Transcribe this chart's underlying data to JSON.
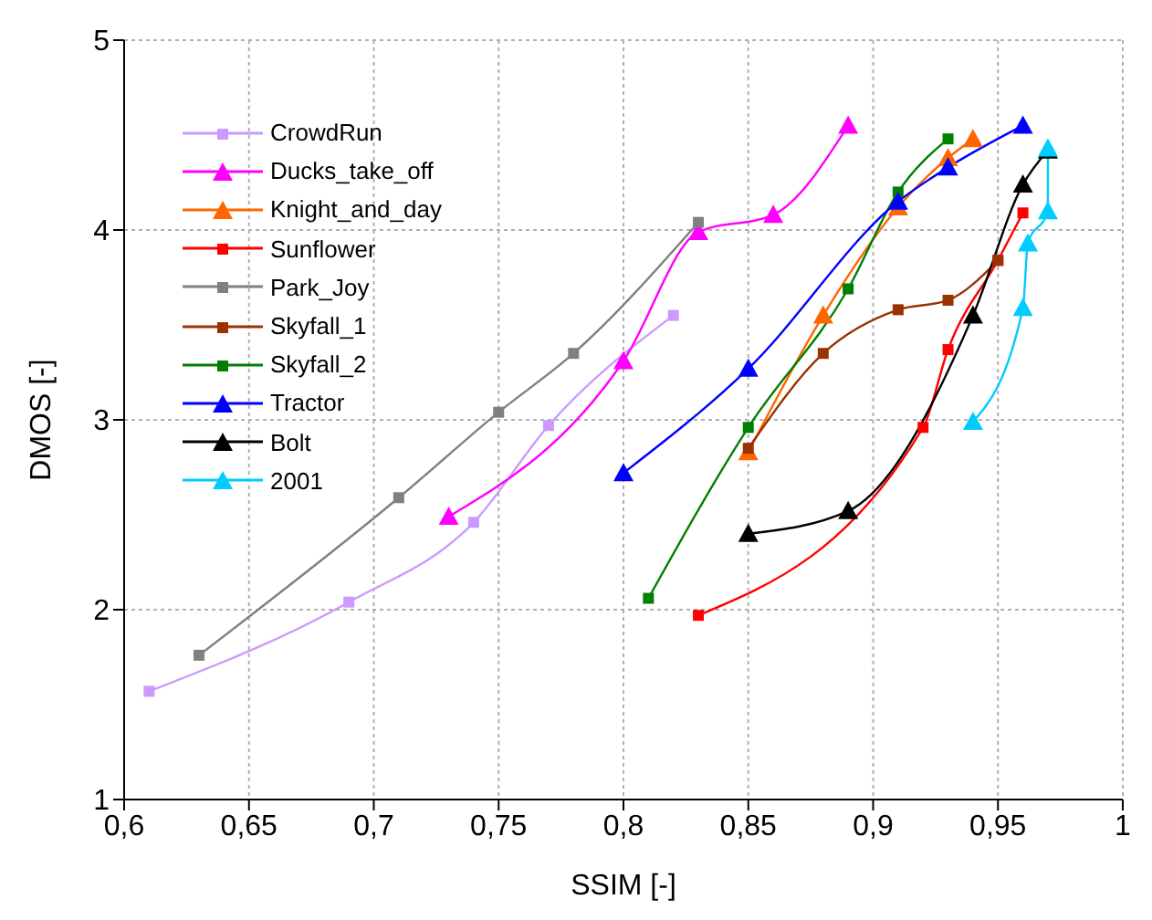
{
  "chart_data": {
    "type": "line",
    "xlabel": "SSIM [-]",
    "ylabel": "DMOS [-]",
    "xlim": [
      0.6,
      1
    ],
    "xticks": [
      {
        "value": 0.6,
        "label": "0,6"
      },
      {
        "value": 0.65,
        "label": "0,65"
      },
      {
        "value": 0.7,
        "label": "0,7"
      },
      {
        "value": 0.75,
        "label": "0,75"
      },
      {
        "value": 0.8,
        "label": "0,8"
      },
      {
        "value": 0.85,
        "label": "0,85"
      },
      {
        "value": 0.9,
        "label": "0,9"
      },
      {
        "value": 0.95,
        "label": "0,95"
      },
      1
    ],
    "ylim": [
      1,
      5
    ],
    "yticks": [
      1,
      2,
      3,
      4,
      5
    ],
    "grid": true,
    "legend": "top left",
    "line_style": "solid",
    "series": [
      {
        "name": "CrowdRun",
        "color": "#cc99ff",
        "marker": "square",
        "x": [
          0.61,
          0.69,
          0.74,
          0.77,
          0.82
        ],
        "values": [
          1.57,
          2.04,
          2.46,
          2.97,
          3.55
        ]
      },
      {
        "name": "Ducks_take_off",
        "color": "#ff00ff",
        "marker": "triangle",
        "x": [
          0.73,
          0.8,
          0.83,
          0.86,
          0.89
        ],
        "values": [
          2.49,
          3.31,
          3.99,
          4.08,
          4.55
        ]
      },
      {
        "name": "Knight_and_day",
        "color": "#ff6600",
        "marker": "triangle",
        "x": [
          0.85,
          0.88,
          0.91,
          0.93,
          0.94
        ],
        "values": [
          2.83,
          3.55,
          4.12,
          4.38,
          4.48
        ]
      },
      {
        "name": "Sunflower",
        "color": "#ff0000",
        "marker": "square",
        "x": [
          0.83,
          0.92,
          0.93,
          0.95,
          0.96
        ],
        "values": [
          1.97,
          2.96,
          3.37,
          3.84,
          4.09
        ]
      },
      {
        "name": "Park_Joy",
        "color": "#808080",
        "marker": "square",
        "x": [
          0.63,
          0.71,
          0.75,
          0.78,
          0.83
        ],
        "values": [
          1.76,
          2.59,
          3.04,
          3.35,
          4.04
        ]
      },
      {
        "name": "Skyfall_1",
        "color": "#993300",
        "marker": "square",
        "x": [
          0.85,
          0.88,
          0.91,
          0.93,
          0.95
        ],
        "values": [
          2.85,
          3.35,
          3.58,
          3.63,
          3.84
        ]
      },
      {
        "name": "Skyfall_2",
        "color": "#008000",
        "marker": "square",
        "x": [
          0.81,
          0.85,
          0.89,
          0.91,
          0.93
        ],
        "values": [
          2.06,
          2.96,
          3.69,
          4.2,
          4.48
        ]
      },
      {
        "name": "Tractor",
        "color": "#0000ff",
        "marker": "triangle",
        "x": [
          0.8,
          0.85,
          0.91,
          0.93,
          0.96
        ],
        "values": [
          2.72,
          3.27,
          4.15,
          4.33,
          4.55
        ]
      },
      {
        "name": "Bolt",
        "color": "#000000",
        "marker": "triangle",
        "x": [
          0.85,
          0.89,
          0.94,
          0.96,
          0.97
        ],
        "values": [
          2.4,
          2.52,
          3.55,
          4.24,
          4.42
        ]
      },
      {
        "name": "2001",
        "color": "#00ccff",
        "marker": "triangle",
        "x": [
          0.94,
          0.96,
          0.962,
          0.97,
          0.97
        ],
        "values": [
          2.99,
          3.59,
          3.93,
          4.1,
          4.43
        ]
      }
    ]
  }
}
